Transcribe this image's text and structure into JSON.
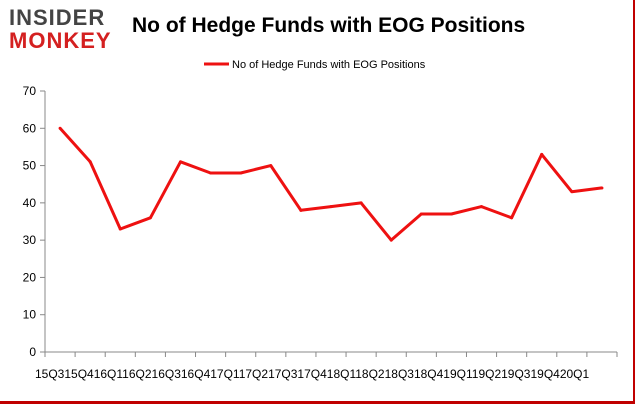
{
  "logo": {
    "line1": "INSIDER",
    "line2": "MONKEY"
  },
  "colors": {
    "series": "#ee1111",
    "axis": "#888888",
    "border": "#c00000"
  },
  "chart_data": {
    "type": "line",
    "title": "No of Hedge Funds with EOG Positions",
    "xlabel": "",
    "ylabel": "",
    "ylim": [
      0,
      70
    ],
    "yticks": [
      0,
      10,
      20,
      30,
      40,
      50,
      60,
      70
    ],
    "grid": false,
    "legend_position": "top",
    "x_tick_text": "15Q315Q416Q116Q216Q316Q417Q117Q217Q317Q418Q118Q218Q318Q419Q119Q219Q319Q420Q1",
    "categories": [
      "15Q3",
      "15Q4",
      "16Q1",
      "16Q2",
      "16Q3",
      "16Q4",
      "17Q1",
      "17Q2",
      "17Q3",
      "17Q4",
      "18Q1",
      "18Q2",
      "18Q3",
      "18Q4",
      "19Q1",
      "19Q2",
      "19Q3",
      "19Q4",
      "20Q1"
    ],
    "series": [
      {
        "name": "No of Hedge Funds with EOG Positions",
        "values": [
          60,
          51,
          33,
          36,
          51,
          48,
          48,
          50,
          38,
          39,
          40,
          30,
          37,
          37,
          39,
          36,
          53,
          43,
          44
        ]
      }
    ]
  }
}
